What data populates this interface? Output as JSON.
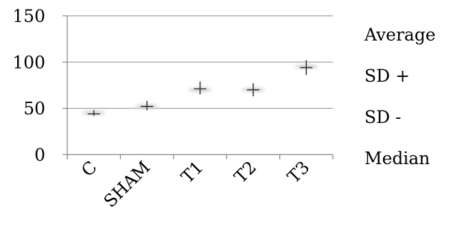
{
  "chart_data": {
    "type": "stock",
    "categories": [
      "C",
      "SHAM",
      "T1",
      "T2",
      "T3"
    ],
    "series": [
      {
        "name": "Average",
        "values": [
          44,
          52,
          71,
          70,
          94
        ]
      },
      {
        "name": "SD +",
        "values": [
          48,
          58,
          79,
          77,
          102
        ]
      },
      {
        "name": "SD -",
        "values": [
          42,
          48,
          65,
          63,
          86
        ]
      },
      {
        "name": "Median",
        "values": [
          45,
          52,
          70,
          70,
          95
        ]
      }
    ],
    "ylim": [
      0,
      150
    ],
    "yticks": [
      0,
      50,
      100,
      150
    ],
    "grid": true,
    "legend_position": "right",
    "colors": {
      "marks": "#333333",
      "grid": "#9a9a9a",
      "axis": "#808080",
      "halo": "#d8d8d8"
    }
  }
}
